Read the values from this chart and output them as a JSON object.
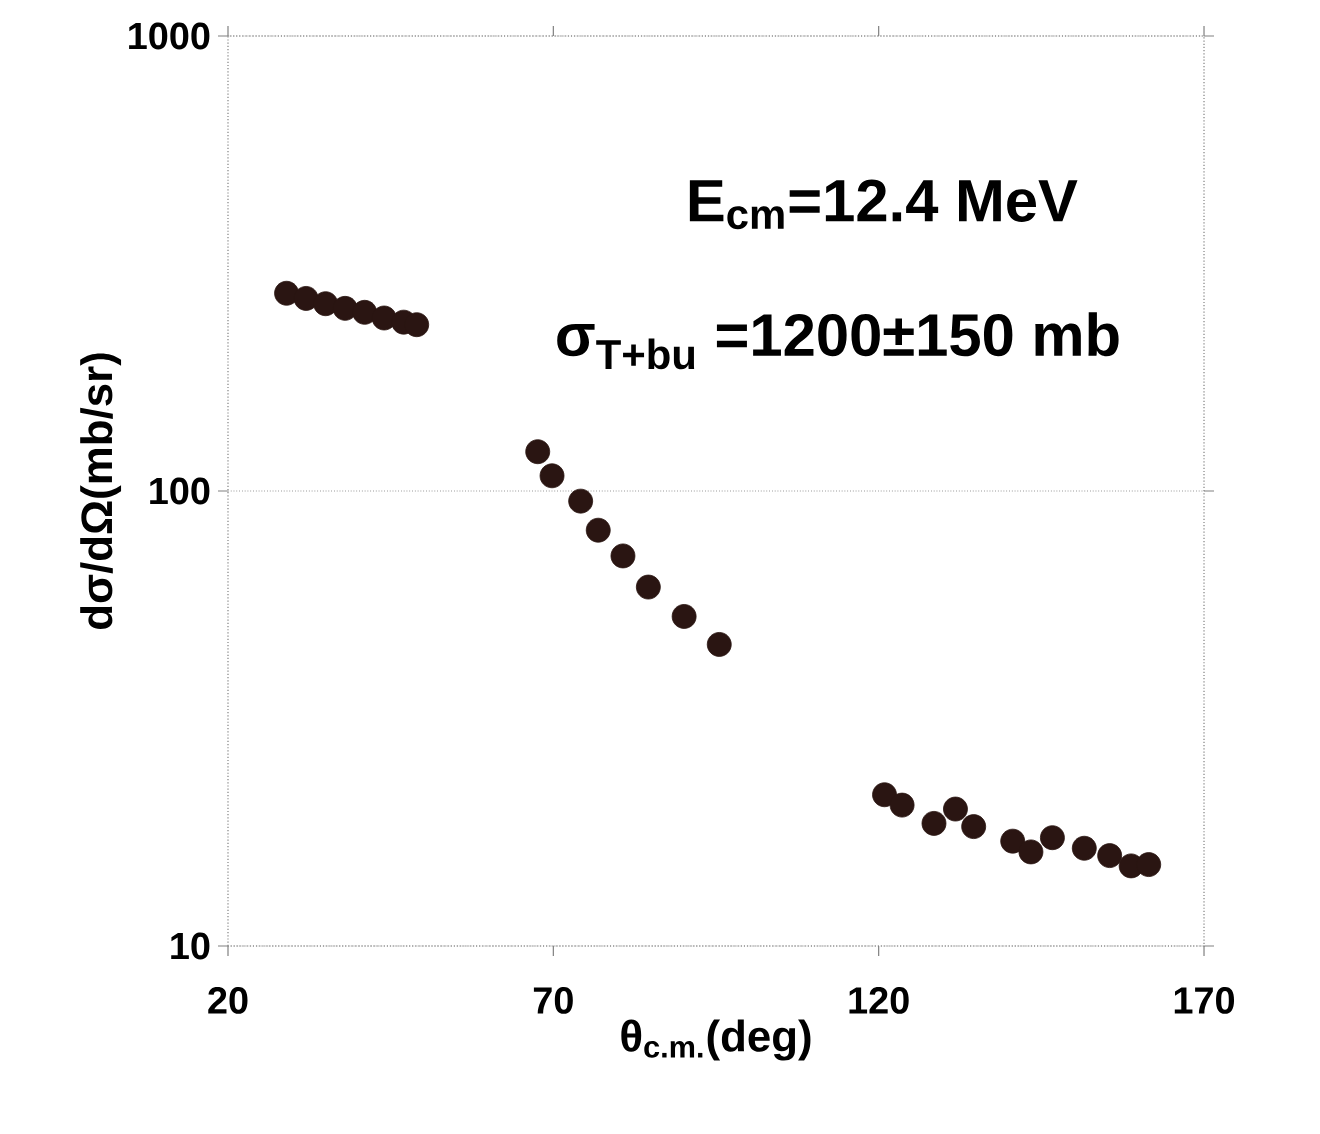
{
  "chart_data": {
    "type": "scatter",
    "xlabel": "θ$_{c.m.}$(deg)",
    "ylabel": "dσ/dΩ(mb/sr)",
    "annotations": [
      "E$_{cm}$=12.4 MeV",
      "σ$_{T+bu}$ =1200±150 mb"
    ],
    "log": "y",
    "grid": "y",
    "xlim": [
      20,
      170
    ],
    "xticks": [
      20,
      70,
      120,
      170
    ],
    "ylim": [
      10,
      1000
    ],
    "yticks": [
      10,
      100,
      1000
    ],
    "series": [
      {
        "color": "#2a1512",
        "x": [
          29,
          32,
          35,
          38,
          41,
          44,
          47,
          49,
          67.6,
          69.8,
          74.2,
          76.9,
          80.7,
          84.6,
          90.1,
          95.5,
          120.9,
          123.6,
          128.5,
          131.8,
          134.6,
          140.6,
          143.4,
          146.7,
          151.6,
          155.5,
          158.8,
          161.5
        ],
        "values": [
          272,
          265,
          258,
          252,
          247,
          240,
          235,
          232,
          122,
          108,
          95,
          82,
          72,
          61.5,
          53,
          46,
          21.5,
          20.4,
          18.6,
          20.0,
          18.3,
          17.0,
          16.1,
          17.3,
          16.4,
          15.8,
          15.0,
          15.1
        ]
      }
    ]
  }
}
